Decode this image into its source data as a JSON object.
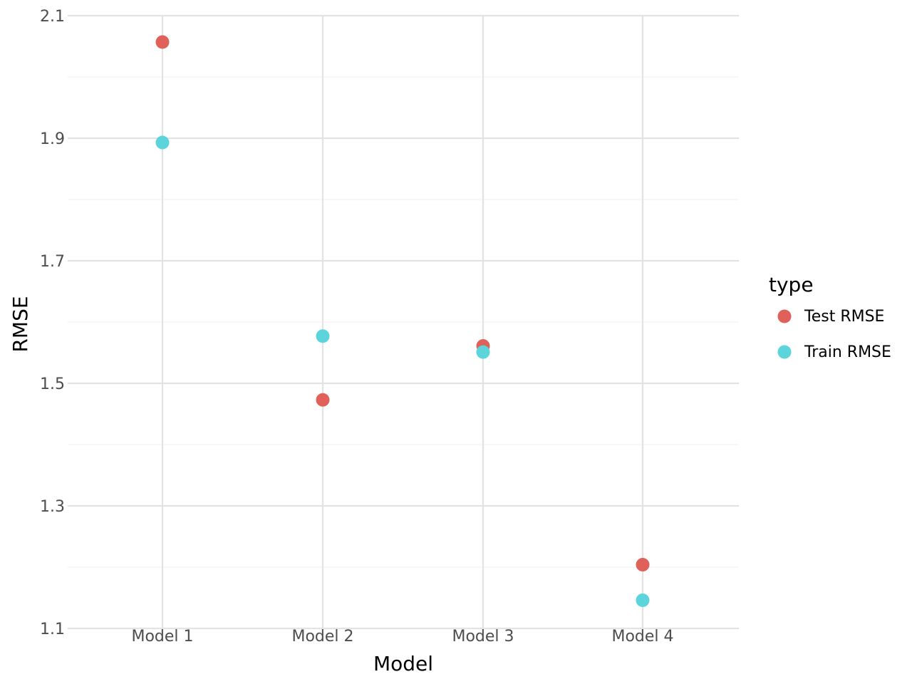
{
  "chart_data": {
    "type": "scatter",
    "title": "",
    "xlabel": "Model",
    "ylabel": "RMSE",
    "categories": [
      "Model 1",
      "Model 2",
      "Model 3",
      "Model 4"
    ],
    "ylim": [
      1.1,
      2.1
    ],
    "yticks": [
      1.1,
      1.3,
      1.5,
      1.7,
      1.9,
      2.1
    ],
    "yticks_labels": [
      "1.1",
      "1.3",
      "1.5",
      "1.7",
      "1.9",
      "2.1"
    ],
    "grid": true,
    "legend": {
      "title": "type",
      "placement": "right"
    },
    "series": [
      {
        "name": "Test RMSE",
        "color": "#e0605a",
        "values": [
          2.057,
          1.473,
          1.561,
          1.204
        ]
      },
      {
        "name": "Train RMSE",
        "color": "#5bd4dc",
        "values": [
          1.893,
          1.577,
          1.551,
          1.146
        ]
      }
    ]
  }
}
